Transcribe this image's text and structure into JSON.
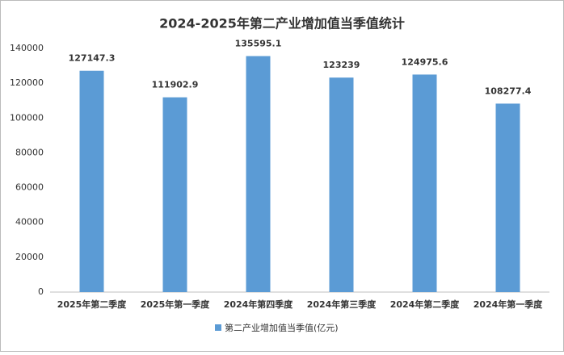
{
  "chart_data": {
    "type": "bar",
    "title": "2024-2025年第二产业增加值当季值统计",
    "categories": [
      "2025年第二季度",
      "2025年第一季度",
      "2024年第四季度",
      "2024年第三季度",
      "2024年第二季度",
      "2024年第一季度"
    ],
    "series": [
      {
        "name": "第二产业增加值当季值(亿元)",
        "color": "#5b9bd5",
        "values": [
          127147.3,
          111902.9,
          135595.1,
          123239,
          124975.6,
          108277.4
        ]
      }
    ],
    "ylim": [
      0,
      140000
    ],
    "yticks": [
      0,
      20000,
      40000,
      60000,
      80000,
      100000,
      120000,
      140000
    ],
    "grid": false,
    "legend": "bottom"
  }
}
